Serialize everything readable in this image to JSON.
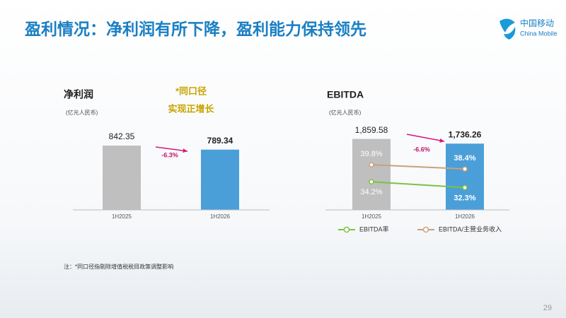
{
  "slide": {
    "title": "盈利情况：净利润有所下降，盈利能力保持领先",
    "logo_cn": "中国移动",
    "logo_en": "China Mobile",
    "note": "注：*同口径指剔除增值税税目政策调整影响",
    "page": "29"
  },
  "chart_data": [
    {
      "type": "bar",
      "title": "净利润",
      "subtitle": "(亿元人民币)",
      "categories": [
        "1H2025",
        "1H2026"
      ],
      "values": [
        842.35,
        789.34
      ],
      "colors": [
        "#bfbfbf",
        "#4a9fd8"
      ],
      "ylim": [
        0,
        1000
      ],
      "annotations": [
        "-6.3%",
        "*同口径",
        "实现正增长"
      ]
    },
    {
      "type": "combo",
      "title": "EBITDA",
      "subtitle": "(亿元人民币)",
      "categories": [
        "1H2025",
        "1H2026"
      ],
      "values": [
        1859.58,
        1736.26
      ],
      "value_labels": [
        "1,859.58",
        "1,736.26"
      ],
      "colors": [
        "#bfbfbf",
        "#4a9fd8"
      ],
      "ylim": [
        0,
        2000
      ],
      "y2lim": [
        25,
        50
      ],
      "series": [
        {
          "name": "EBITDA率",
          "color": "#7dc242",
          "axis": "y2",
          "values": [
            34.2,
            32.3
          ],
          "value_labels": [
            "34.2%",
            "32.3%"
          ]
        },
        {
          "name": "EBITDA/主营业务收入",
          "color": "#c8a27a",
          "axis": "y2",
          "values": [
            39.8,
            38.4
          ],
          "value_labels": [
            "39.8%",
            "38.4%"
          ]
        }
      ],
      "annotations": [
        "-6.6%"
      ]
    }
  ]
}
